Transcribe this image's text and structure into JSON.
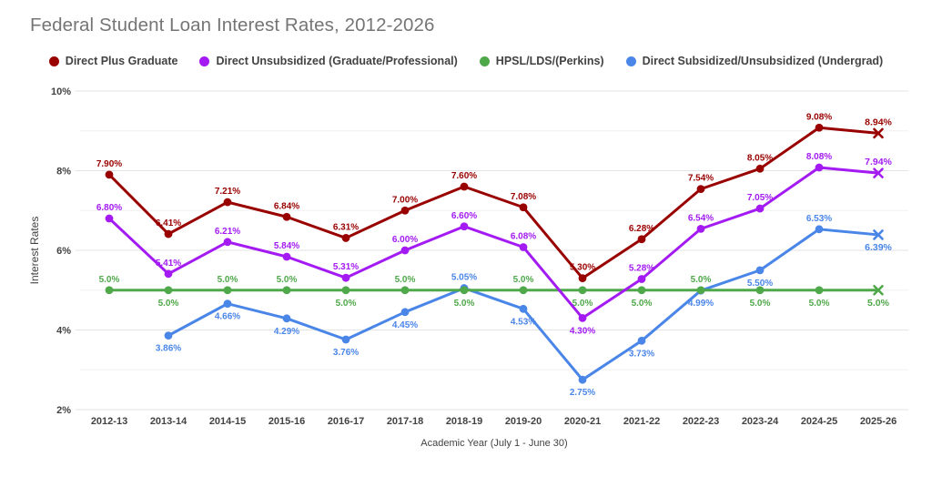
{
  "chart_data": {
    "type": "line",
    "title": "Federal Student Loan Interest Rates, 2012-2026",
    "xlabel": "Academic Year (July 1 - June 30)",
    "ylabel": "Interest Rates",
    "ylim": [
      2,
      10
    ],
    "yticks": [
      2,
      4,
      6,
      8,
      10
    ],
    "ytick_labels": [
      "2%",
      "4%",
      "6%",
      "8%",
      "10%"
    ],
    "minor_gridlines": [
      3,
      5,
      7,
      9
    ],
    "grid": true,
    "legend_position": "top",
    "background_color": "#ffffff",
    "title_color": "#757575",
    "axis_text_color": "#424242",
    "categories": [
      "2012-13",
      "2013-14",
      "2014-15",
      "2015-16",
      "2016-17",
      "2017-18",
      "2018-19",
      "2019-20",
      "2020-21",
      "2021-22",
      "2022-23",
      "2023-24",
      "2024-25",
      "2025-26"
    ],
    "series": [
      {
        "name": "Direct Plus Graduate",
        "color": "#990000",
        "values": [
          7.9,
          6.41,
          7.21,
          6.84,
          6.31,
          7.0,
          7.6,
          7.08,
          5.3,
          6.28,
          7.54,
          8.05,
          9.08,
          8.94
        ],
        "labels": [
          "7.90%",
          "6.41%",
          "7.21%",
          "6.84%",
          "6.31%",
          "7.00%",
          "7.60%",
          "7.08%",
          "5.30%",
          "6.28%",
          "7.54%",
          "8.05%",
          "9.08%",
          "8.94%"
        ],
        "label_side": [
          "a",
          "a",
          "a",
          "a",
          "a",
          "a",
          "a",
          "a",
          "a",
          "a",
          "a",
          "a",
          "a",
          "a"
        ]
      },
      {
        "name": "Direct Unsubsidized (Graduate/Professional)",
        "color": "#a31bf2",
        "values": [
          6.8,
          5.41,
          6.21,
          5.84,
          5.31,
          6.0,
          6.6,
          6.08,
          4.3,
          5.28,
          6.54,
          7.05,
          8.08,
          7.94
        ],
        "labels": [
          "6.80%",
          "5.41%",
          "6.21%",
          "5.84%",
          "5.31%",
          "6.00%",
          "6.60%",
          "6.08%",
          "4.30%",
          "5.28%",
          "6.54%",
          "7.05%",
          "8.08%",
          "7.94%"
        ],
        "label_side": [
          "a",
          "a",
          "a",
          "a",
          "a",
          "a",
          "a",
          "a",
          "b",
          "a",
          "a",
          "a",
          "a",
          "a"
        ]
      },
      {
        "name": "HPSL/LDS/(Perkins)",
        "color": "#4fa84a",
        "values": [
          5.0,
          5.0,
          5.0,
          5.0,
          5.0,
          5.0,
          5.0,
          5.0,
          5.0,
          5.0,
          5.0,
          5.0,
          5.0,
          5.0
        ],
        "labels": [
          "5.0%",
          "5.0%",
          "5.0%",
          "5.0%",
          "5.0%",
          "5.0%",
          "5.0%",
          "5.0%",
          "5.0%",
          "5.0%",
          "5.0%",
          "5.0%",
          "5.0%",
          "5.0%"
        ],
        "label_side": [
          "a",
          "b",
          "a",
          "a",
          "b",
          "a",
          "b",
          "a",
          "b",
          "b",
          "a",
          "b",
          "b",
          "b"
        ]
      },
      {
        "name": "Direct Subsidized/Unsubsidized (Undergrad)",
        "color": "#4a86e8",
        "values": [
          null,
          3.86,
          4.66,
          4.29,
          3.76,
          4.45,
          5.05,
          4.53,
          2.75,
          3.73,
          4.99,
          5.5,
          6.53,
          6.39
        ],
        "labels": [
          null,
          "3.86%",
          "4.66%",
          "4.29%",
          "3.76%",
          "4.45%",
          "5.05%",
          "4.53%",
          "2.75%",
          "3.73%",
          "4.99%",
          "5.50%",
          "6.53%",
          "6.39%"
        ],
        "label_side": [
          null,
          "b",
          "b",
          "b",
          "b",
          "b",
          "a",
          "b",
          "b",
          "b",
          "b",
          "b",
          "a",
          "b"
        ]
      }
    ]
  }
}
